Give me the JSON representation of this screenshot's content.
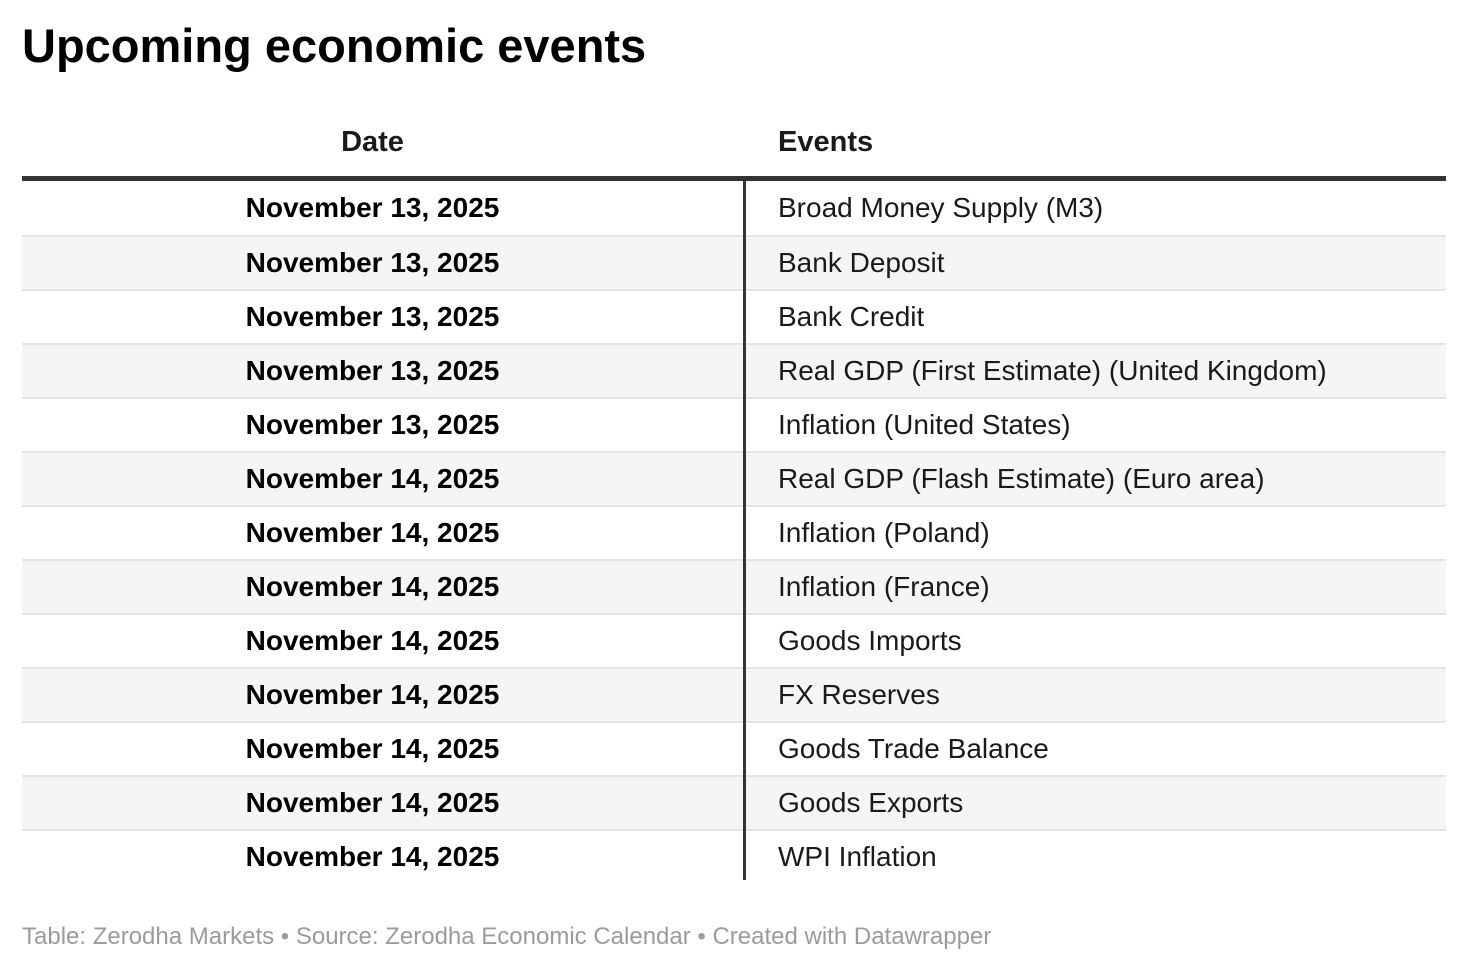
{
  "chart_data": {
    "type": "table",
    "title": "Upcoming economic events",
    "columns": [
      "Date",
      "Events"
    ],
    "rows": [
      [
        "November 13, 2025",
        "Broad Money Supply (M3)"
      ],
      [
        "November 13, 2025",
        "Bank Deposit"
      ],
      [
        "November 13, 2025",
        "Bank Credit"
      ],
      [
        "November 13, 2025",
        "Real GDP (First Estimate) (United Kingdom)"
      ],
      [
        "November 13, 2025",
        "Inflation (United States)"
      ],
      [
        "November 14, 2025",
        "Real GDP (Flash Estimate) (Euro area)"
      ],
      [
        "November 14, 2025",
        "Inflation (Poland)"
      ],
      [
        "November 14, 2025",
        "Inflation (France)"
      ],
      [
        "November 14, 2025",
        "Goods Imports"
      ],
      [
        "November 14, 2025",
        "FX Reserves"
      ],
      [
        "November 14, 2025",
        "Goods Trade Balance"
      ],
      [
        "November 14, 2025",
        "Goods Exports"
      ],
      [
        "November 14, 2025",
        "WPI Inflation"
      ]
    ],
    "layout": {
      "striped_rows": true,
      "date_column_align": "center",
      "events_column_align": "left"
    }
  },
  "footer": {
    "text": "Table: Zerodha Markets • Source: Zerodha Economic Calendar • Created with Datawrapper"
  },
  "colors": {
    "header_rule": "#333333",
    "column_divider": "#333333",
    "row_separator": "#e4e4e4",
    "alt_row_background": "#f5f5f5",
    "body_text": "#1a1a1a",
    "footer_text": "#9b9b9b",
    "background": "#ffffff"
  }
}
